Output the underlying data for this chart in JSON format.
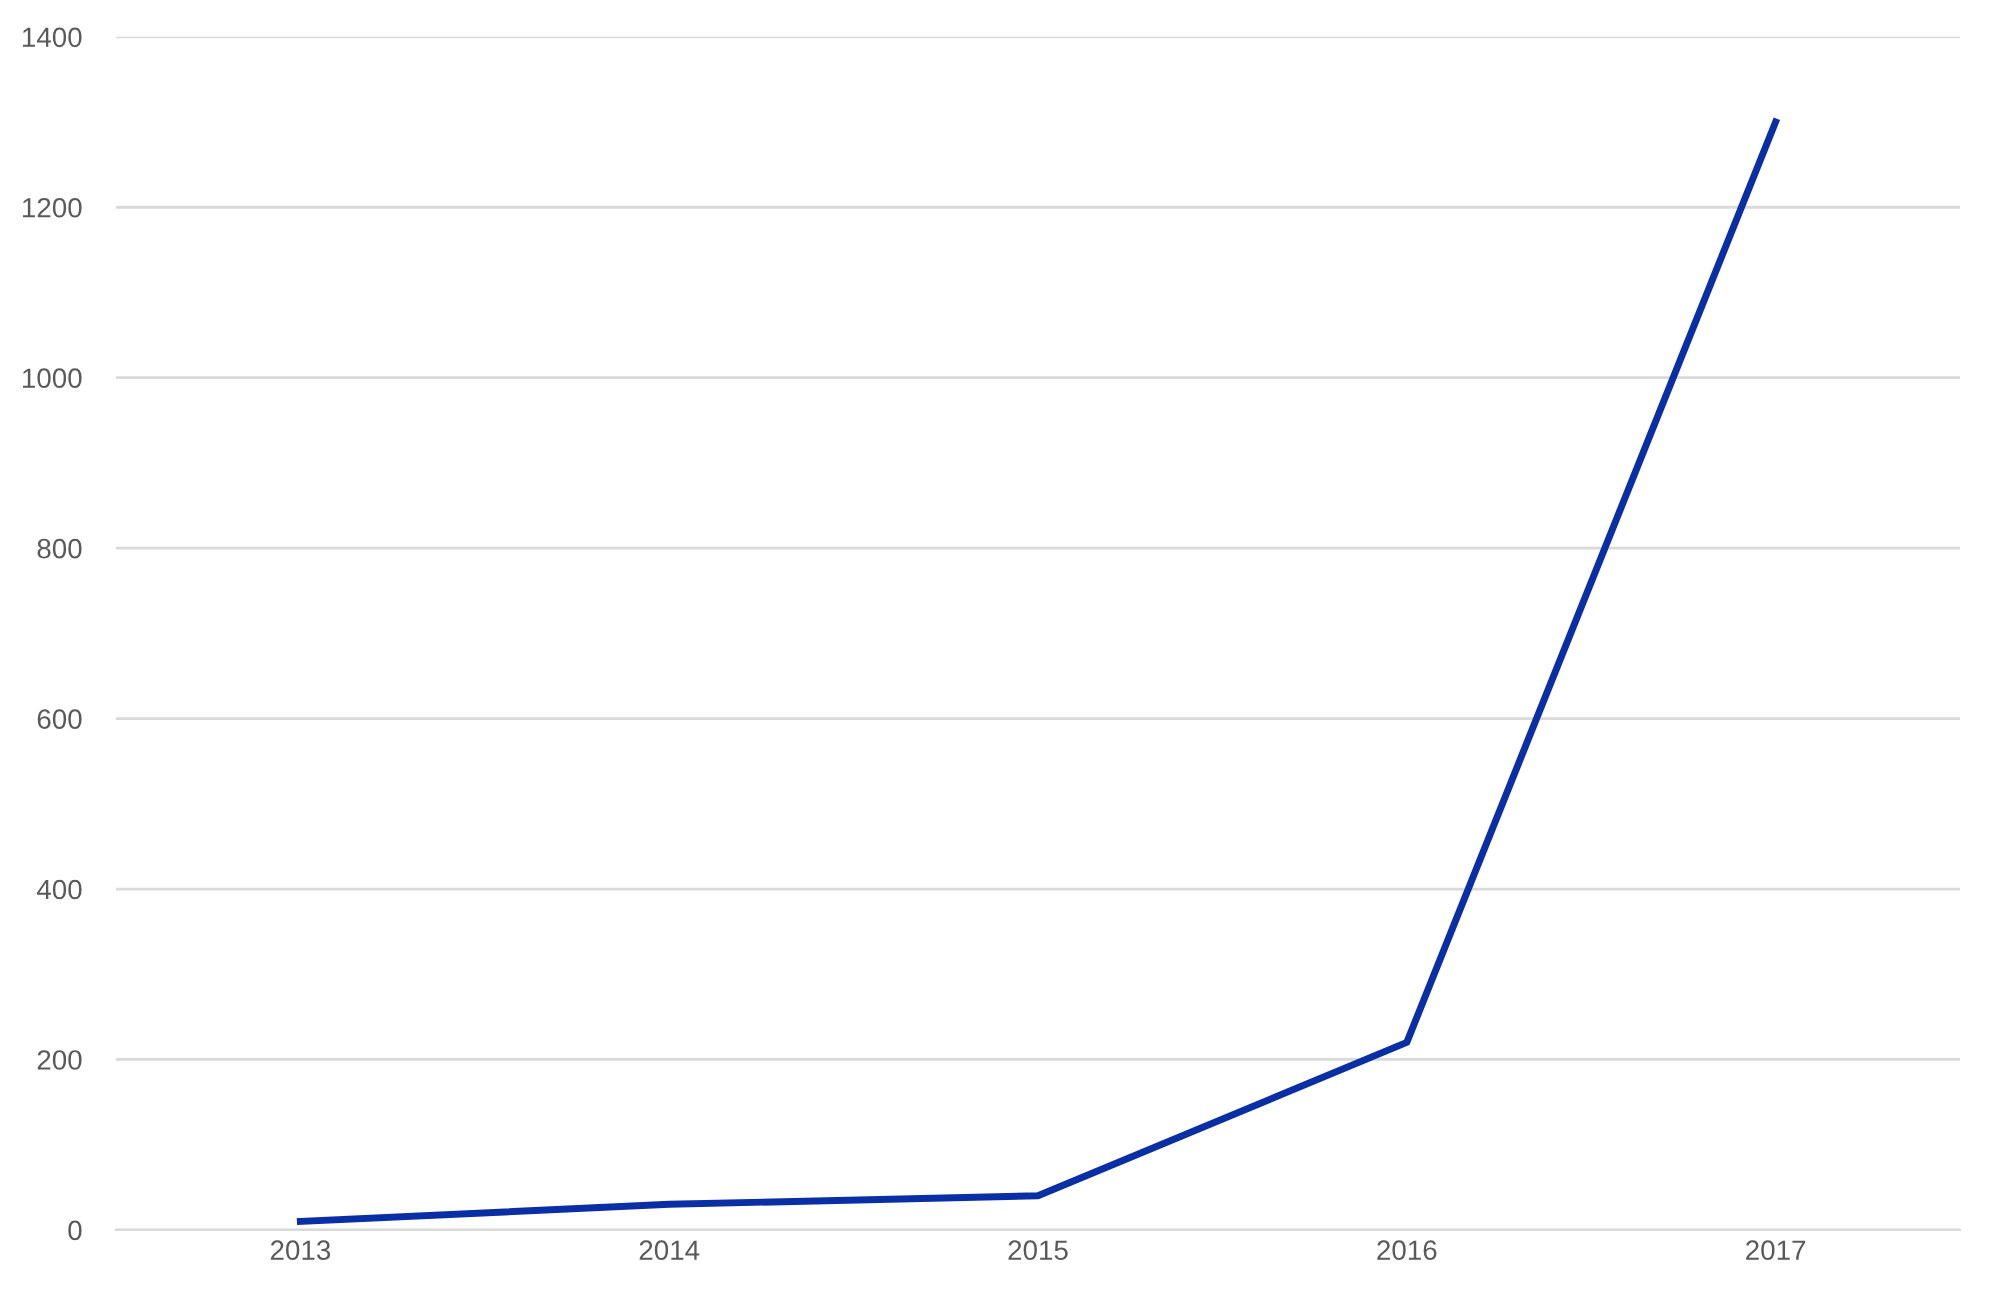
{
  "chart_data": {
    "type": "line",
    "categories": [
      "2013",
      "2014",
      "2015",
      "2016",
      "2017"
    ],
    "series": [
      {
        "color": "#0a2ea4",
        "values": [
          10,
          30,
          40,
          220,
          1300
        ]
      }
    ],
    "ylim": [
      0,
      1400
    ],
    "yticks": [
      0,
      200,
      400,
      600,
      800,
      1000,
      1200,
      1400
    ],
    "grid": "y",
    "legend": false,
    "marker": "none",
    "line_style": "solid"
  }
}
